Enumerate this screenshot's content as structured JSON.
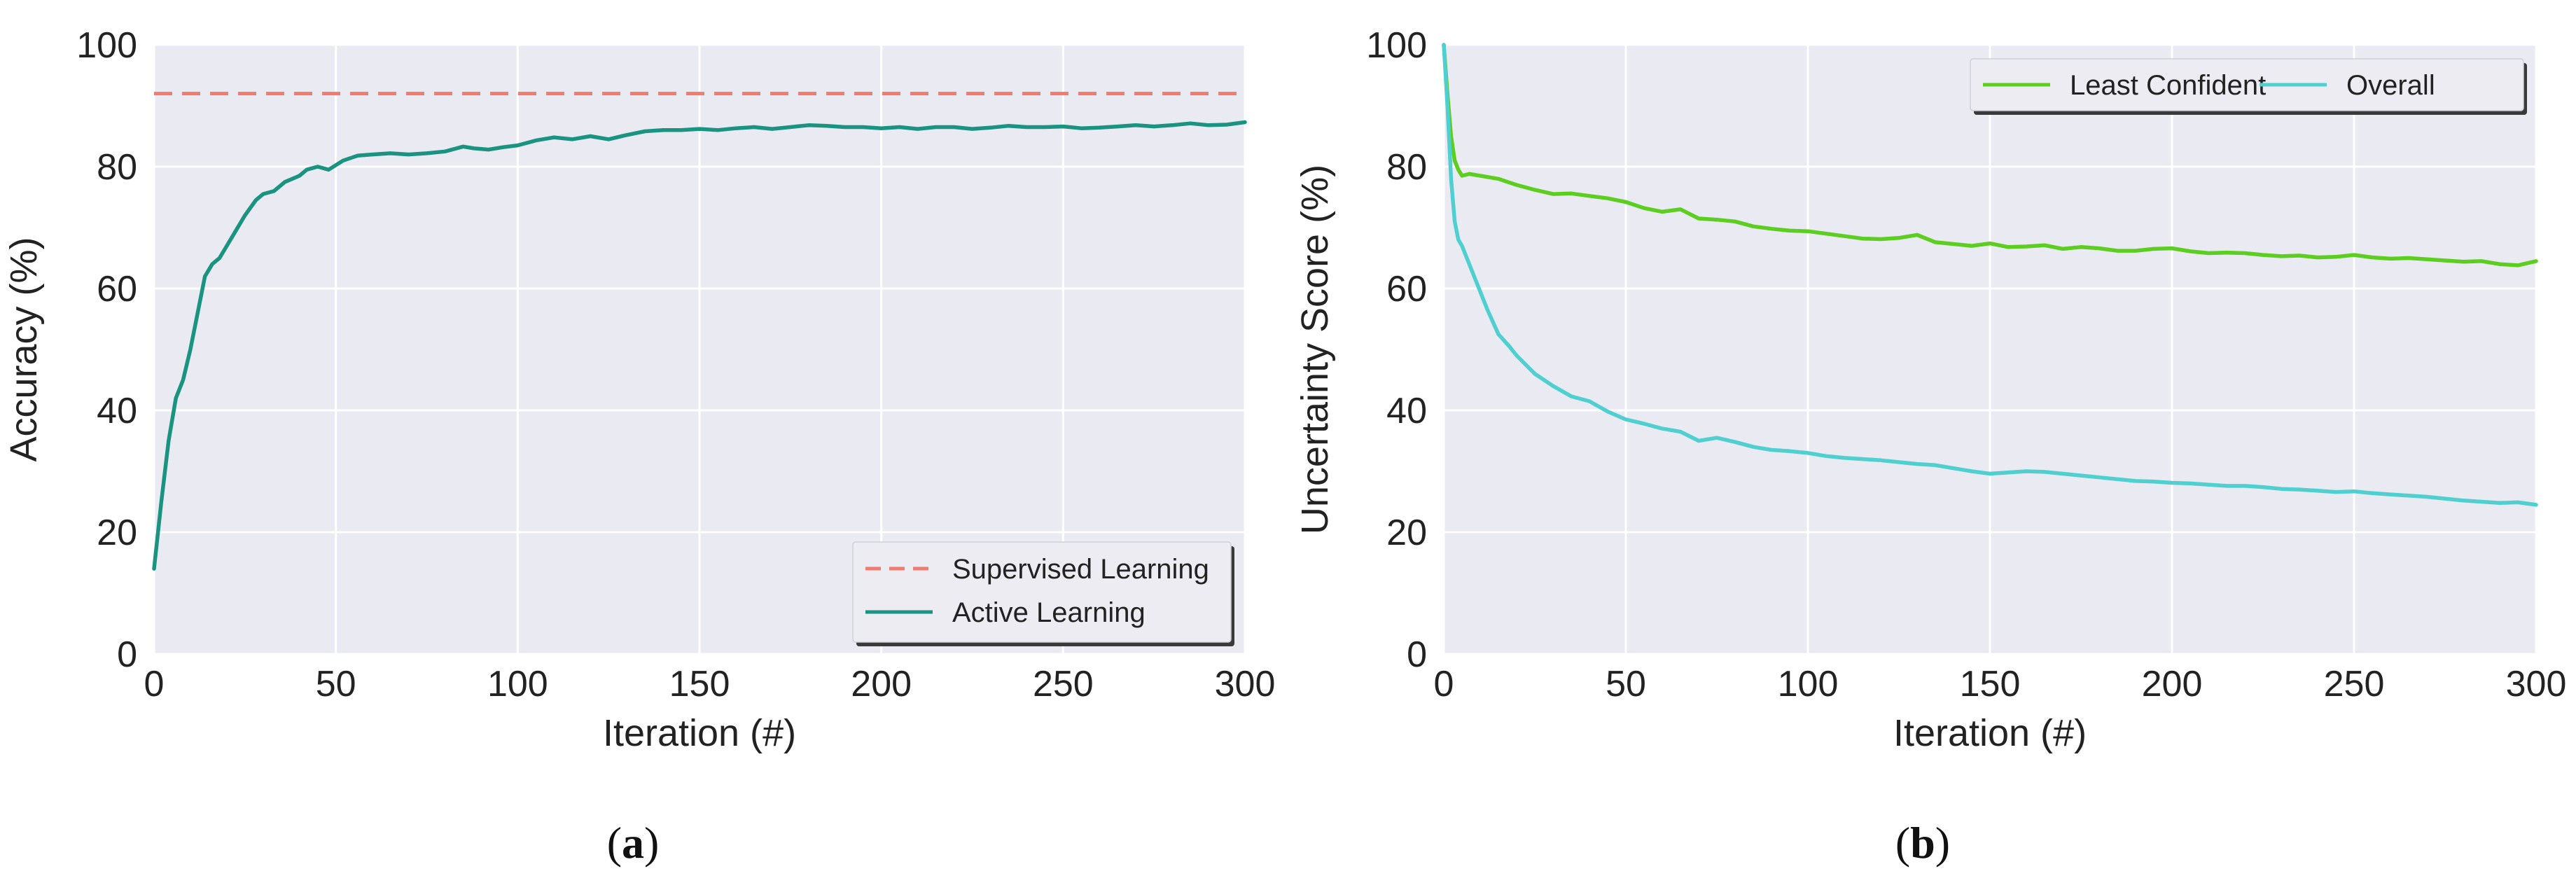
{
  "chart_data": [
    {
      "type": "line",
      "caption_letter": "a",
      "xlabel": "Iteration (#)",
      "ylabel": "Accuracy (%)",
      "xlim": [
        0,
        300
      ],
      "ylim": [
        0,
        100
      ],
      "xticks": [
        "0",
        "50",
        "100",
        "150",
        "200",
        "250",
        "300"
      ],
      "yticks": [
        "0",
        "20",
        "40",
        "60",
        "80",
        "100"
      ],
      "grid": true,
      "legend_position": "lower-right",
      "series": [
        {
          "name": "Supervised Learning",
          "color": "#f07b6e",
          "style": "dashed",
          "x": [
            0,
            300
          ],
          "y": [
            92,
            92
          ]
        },
        {
          "name": "Active Learning",
          "color": "#1a9480",
          "style": "solid",
          "x": [
            0,
            2,
            4,
            6,
            8,
            10,
            12,
            14,
            16,
            18,
            20,
            22,
            25,
            28,
            30,
            33,
            36,
            40,
            42,
            45,
            48,
            52,
            56,
            60,
            65,
            70,
            75,
            80,
            85,
            88,
            92,
            96,
            100,
            105,
            110,
            115,
            120,
            125,
            130,
            135,
            140,
            145,
            150,
            155,
            160,
            165,
            170,
            175,
            180,
            185,
            190,
            195,
            200,
            205,
            210,
            215,
            220,
            225,
            230,
            235,
            240,
            245,
            250,
            255,
            260,
            265,
            270,
            275,
            280,
            285,
            290,
            295,
            300
          ],
          "y": [
            14,
            25,
            35,
            42,
            45,
            50,
            56,
            62,
            64,
            65,
            67,
            69,
            72,
            74.5,
            75.5,
            76,
            77.5,
            78.5,
            79.5,
            80,
            79.5,
            81,
            81.8,
            82,
            82.2,
            82,
            82.2,
            82.5,
            83.3,
            83,
            82.8,
            83.2,
            83.5,
            84.3,
            84.8,
            84.5,
            85,
            84.5,
            85.2,
            85.8,
            86,
            86,
            86.2,
            86,
            86.3,
            86.5,
            86.2,
            86.5,
            86.8,
            86.7,
            86.5,
            86.5,
            86.3,
            86.5,
            86.2,
            86.5,
            86.5,
            86.2,
            86.4,
            86.7,
            86.5,
            86.5,
            86.6,
            86.3,
            86.4,
            86.6,
            86.8,
            86.6,
            86.8,
            87.1,
            86.8,
            86.9,
            87.3
          ]
        }
      ]
    },
    {
      "type": "line",
      "caption_letter": "b",
      "xlabel": "Iteration (#)",
      "ylabel": "Uncertainty Score (%)",
      "xlim": [
        0,
        300
      ],
      "ylim": [
        0,
        100
      ],
      "xticks": [
        "0",
        "50",
        "100",
        "150",
        "200",
        "250",
        "300"
      ],
      "yticks": [
        "0",
        "20",
        "40",
        "60",
        "80",
        "100"
      ],
      "grid": true,
      "legend_position": "top-right",
      "series": [
        {
          "name": "Least Confident",
          "color": "#5cce1f",
          "style": "solid",
          "x": [
            0,
            1,
            2,
            3,
            4,
            5,
            7,
            10,
            15,
            20,
            25,
            30,
            35,
            40,
            45,
            50,
            55,
            60,
            65,
            70,
            75,
            80,
            85,
            90,
            95,
            100,
            105,
            110,
            115,
            120,
            125,
            130,
            135,
            140,
            145,
            150,
            155,
            160,
            165,
            170,
            175,
            180,
            185,
            190,
            195,
            200,
            205,
            210,
            215,
            220,
            225,
            230,
            235,
            240,
            245,
            250,
            255,
            260,
            265,
            270,
            275,
            280,
            285,
            290,
            295,
            300
          ],
          "y": [
            100,
            92,
            85,
            81,
            79.5,
            78.5,
            78.8,
            78.5,
            78,
            77,
            76.2,
            75.5,
            75.6,
            75.2,
            74.8,
            74.2,
            73.2,
            72.6,
            73,
            71.5,
            71.3,
            71,
            70.2,
            69.8,
            69.5,
            69.4,
            69,
            68.6,
            68.2,
            68.1,
            68.3,
            68.8,
            67.6,
            67.3,
            67,
            67.4,
            66.8,
            66.9,
            67.1,
            66.5,
            66.8,
            66.6,
            66.2,
            66.2,
            66.5,
            66.6,
            66.1,
            65.8,
            65.9,
            65.8,
            65.5,
            65.3,
            65.4,
            65.1,
            65.2,
            65.5,
            65.1,
            64.9,
            65,
            64.8,
            64.6,
            64.4,
            64.5,
            64,
            63.8,
            64.5
          ]
        },
        {
          "name": "Overall",
          "color": "#4fcfcf",
          "style": "solid",
          "x": [
            0,
            1,
            2,
            3,
            4,
            5,
            7,
            10,
            12,
            15,
            18,
            20,
            25,
            30,
            35,
            40,
            45,
            50,
            55,
            60,
            65,
            70,
            75,
            80,
            85,
            90,
            95,
            100,
            105,
            110,
            115,
            120,
            125,
            130,
            135,
            140,
            145,
            150,
            155,
            160,
            165,
            170,
            175,
            180,
            185,
            190,
            195,
            200,
            205,
            210,
            215,
            220,
            225,
            230,
            235,
            240,
            245,
            250,
            255,
            260,
            265,
            270,
            275,
            280,
            285,
            290,
            295,
            300
          ],
          "y": [
            100,
            90,
            78,
            71,
            68,
            67,
            64,
            59.5,
            56.5,
            52.5,
            50.5,
            49,
            46,
            44,
            42.3,
            41.5,
            39.8,
            38.5,
            37.8,
            37,
            36.5,
            35,
            35.5,
            34.8,
            34,
            33.5,
            33.3,
            33,
            32.5,
            32.2,
            32,
            31.8,
            31.5,
            31.2,
            31,
            30.5,
            30,
            29.6,
            29.8,
            30,
            29.9,
            29.6,
            29.3,
            29,
            28.7,
            28.4,
            28.3,
            28.1,
            28,
            27.8,
            27.6,
            27.6,
            27.4,
            27.1,
            27,
            26.8,
            26.6,
            26.7,
            26.4,
            26.2,
            26,
            25.8,
            25.5,
            25.2,
            25,
            24.8,
            24.9,
            24.5
          ]
        }
      ]
    }
  ]
}
